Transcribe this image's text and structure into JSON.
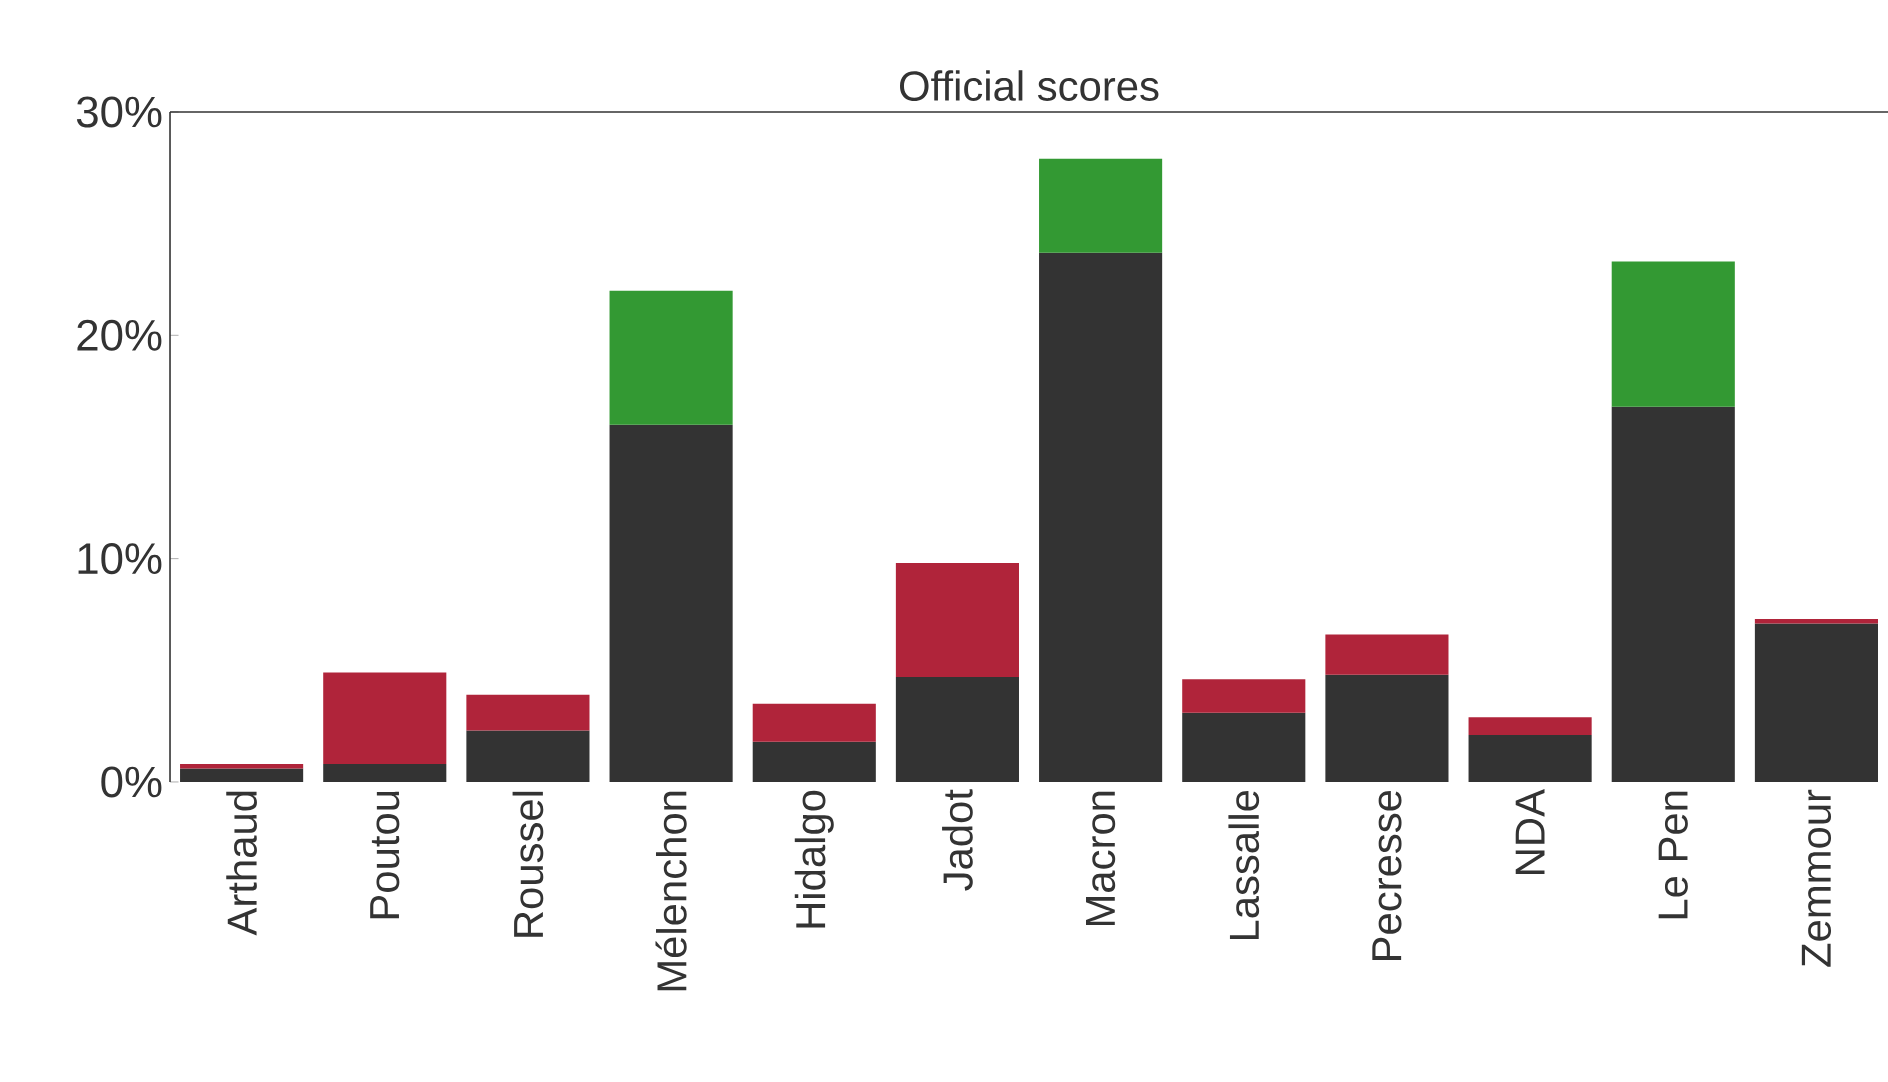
{
  "chart_data": {
    "type": "bar",
    "title": "Official scores",
    "stacked": true,
    "categories": [
      "Arthaud",
      "Poutou",
      "Roussel",
      "Mélenchon",
      "Hidalgo",
      "Jadot",
      "Macron",
      "Lassalle",
      "Pecresse",
      "NDA",
      "Le Pen",
      "Zemmour"
    ],
    "series": [
      {
        "color": "#333333",
        "values": [
          0.6,
          0.8,
          2.3,
          16.0,
          1.8,
          4.7,
          23.7,
          3.1,
          4.8,
          2.1,
          16.8,
          7.1
        ]
      },
      {
        "color": "#b0243a",
        "values": [
          0.2,
          4.1,
          1.6,
          null,
          1.7,
          5.1,
          null,
          1.5,
          1.8,
          0.8,
          null,
          0.2
        ]
      },
      {
        "color": "#339933",
        "values": [
          null,
          null,
          null,
          6.0,
          null,
          null,
          4.2,
          null,
          null,
          null,
          6.5,
          null
        ]
      }
    ],
    "ylim": [
      0,
      30
    ],
    "yticks": [
      {
        "value": 0,
        "label": "0%"
      },
      {
        "value": 10,
        "label": "10%"
      },
      {
        "value": 20,
        "label": "20%"
      },
      {
        "value": 30,
        "label": "30%"
      }
    ],
    "grid": false,
    "legend": false
  }
}
